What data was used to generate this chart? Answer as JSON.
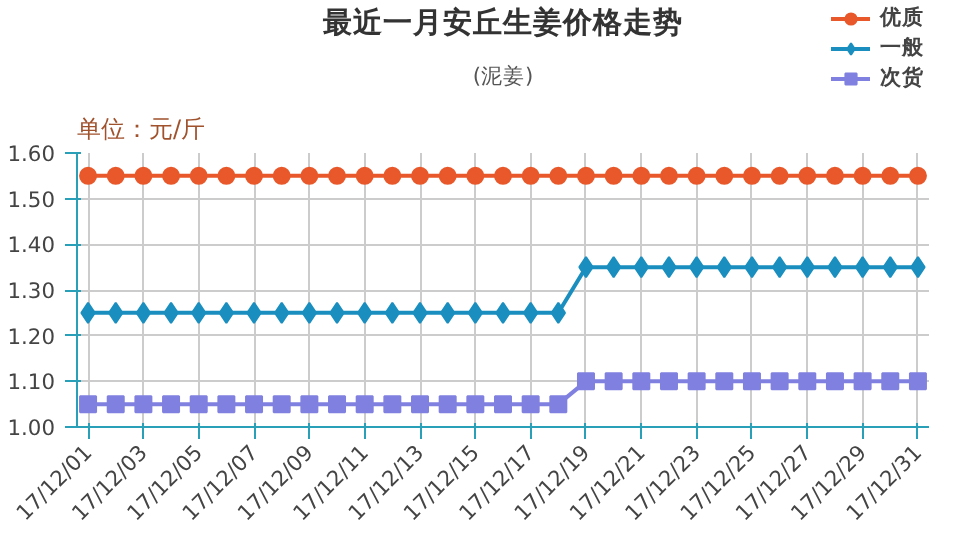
{
  "chart_data": {
    "type": "line",
    "title": "最近一月安丘生姜价格走势",
    "subtitle": "(泥姜)",
    "ylabel": "单位：元/斤",
    "categories": [
      "17/12/01",
      null,
      "17/12/03",
      null,
      "17/12/05",
      null,
      "17/12/07",
      null,
      "17/12/09",
      null,
      "17/12/11",
      null,
      "17/12/13",
      null,
      "17/12/15",
      null,
      "17/12/17",
      null,
      "17/12/19",
      null,
      "17/12/21",
      null,
      "17/12/23",
      null,
      "17/12/25",
      null,
      "17/12/27",
      null,
      "17/12/29",
      null,
      "17/12/31"
    ],
    "series": [
      {
        "name": "优质",
        "color": "#e8582a",
        "marker": "circle",
        "values": [
          1.55,
          1.55,
          1.55,
          1.55,
          1.55,
          1.55,
          1.55,
          1.55,
          1.55,
          1.55,
          1.55,
          1.55,
          1.55,
          1.55,
          1.55,
          1.55,
          1.55,
          1.55,
          1.55,
          1.55,
          1.55,
          1.55,
          1.55,
          1.55,
          1.55,
          1.55,
          1.55,
          1.55,
          1.55,
          1.55,
          1.55
        ]
      },
      {
        "name": "一般",
        "color": "#1a8fbf",
        "marker": "diamond",
        "values": [
          1.25,
          1.25,
          1.25,
          1.25,
          1.25,
          1.25,
          1.25,
          1.25,
          1.25,
          1.25,
          1.25,
          1.25,
          1.25,
          1.25,
          1.25,
          1.25,
          1.25,
          1.25,
          1.35,
          1.35,
          1.35,
          1.35,
          1.35,
          1.35,
          1.35,
          1.35,
          1.35,
          1.35,
          1.35,
          1.35,
          1.35
        ]
      },
      {
        "name": "次货",
        "color": "#8080e0",
        "marker": "square",
        "values": [
          1.05,
          1.05,
          1.05,
          1.05,
          1.05,
          1.05,
          1.05,
          1.05,
          1.05,
          1.05,
          1.05,
          1.05,
          1.05,
          1.05,
          1.05,
          1.05,
          1.05,
          1.05,
          1.1,
          1.1,
          1.1,
          1.1,
          1.1,
          1.1,
          1.1,
          1.1,
          1.1,
          1.1,
          1.1,
          1.1,
          1.1
        ]
      }
    ],
    "ylim": [
      1.0,
      1.6
    ],
    "yticks": [
      {
        "value": 1.0,
        "label": "1.00"
      },
      {
        "value": 1.1,
        "label": "1.10"
      },
      {
        "value": 1.2,
        "label": "1.20"
      },
      {
        "value": 1.3,
        "label": "1.30"
      },
      {
        "value": 1.4,
        "label": "1.40"
      },
      {
        "value": 1.5,
        "label": "1.50"
      },
      {
        "value": 1.6,
        "label": "1.60"
      }
    ],
    "grid": true,
    "legend": "top right",
    "line_style": "solid"
  }
}
